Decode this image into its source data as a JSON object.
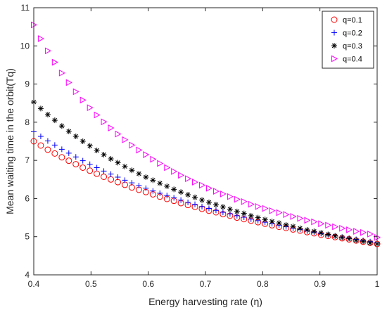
{
  "chart_data": {
    "type": "scatter",
    "title": "",
    "xlabel": "Energy harvesting rate (η)",
    "ylabel": "Mean waiting time in the orbit(Tq)",
    "xlim": [
      0.4,
      1
    ],
    "ylim": [
      4,
      11
    ],
    "xticks": [
      "0.4",
      "0.5",
      "0.6",
      "0.7",
      "0.8",
      "0.9",
      "1"
    ],
    "yticks": [
      "4",
      "5",
      "6",
      "7",
      "8",
      "9",
      "10",
      "11"
    ],
    "grid": false,
    "legend_position": "top-right",
    "x": [
      0.4,
      0.4122,
      0.4245,
      0.4367,
      0.449,
      0.4612,
      0.4735,
      0.4857,
      0.498,
      0.5102,
      0.5224,
      0.5347,
      0.5469,
      0.5592,
      0.5714,
      0.5837,
      0.5959,
      0.6082,
      0.6204,
      0.6327,
      0.6449,
      0.6571,
      0.6694,
      0.6816,
      0.6939,
      0.7061,
      0.7184,
      0.7306,
      0.7429,
      0.7551,
      0.7673,
      0.7796,
      0.7918,
      0.8041,
      0.8163,
      0.8286,
      0.8408,
      0.8531,
      0.8653,
      0.8776,
      0.8898,
      0.902,
      0.9143,
      0.9265,
      0.9388,
      0.951,
      0.9633,
      0.9755,
      0.9878,
      1.0
    ],
    "series": [
      {
        "name": "q=0.1",
        "marker": "circle",
        "color": "#ff0000",
        "values": [
          7.5,
          7.39,
          7.28,
          7.18,
          7.08,
          6.99,
          6.9,
          6.81,
          6.73,
          6.65,
          6.57,
          6.5,
          6.43,
          6.36,
          6.29,
          6.23,
          6.17,
          6.11,
          6.05,
          5.99,
          5.94,
          5.88,
          5.83,
          5.78,
          5.73,
          5.68,
          5.64,
          5.59,
          5.55,
          5.5,
          5.46,
          5.42,
          5.38,
          5.34,
          5.3,
          5.26,
          5.23,
          5.19,
          5.16,
          5.12,
          5.09,
          5.05,
          5.02,
          4.99,
          4.96,
          4.93,
          4.9,
          4.87,
          4.84,
          4.81
        ]
      },
      {
        "name": "q=0.2",
        "marker": "plus",
        "color": "#0000ff",
        "values": [
          7.75,
          7.63,
          7.51,
          7.4,
          7.29,
          7.19,
          7.09,
          6.99,
          6.9,
          6.81,
          6.72,
          6.64,
          6.56,
          6.48,
          6.41,
          6.34,
          6.27,
          6.2,
          6.14,
          6.08,
          6.02,
          5.96,
          5.9,
          5.85,
          5.79,
          5.74,
          5.69,
          5.64,
          5.6,
          5.55,
          5.51,
          5.46,
          5.42,
          5.38,
          5.34,
          5.3,
          5.26,
          5.22,
          5.19,
          5.15,
          5.12,
          5.08,
          5.05,
          5.02,
          4.99,
          4.96,
          4.93,
          4.9,
          4.87,
          4.84
        ]
      },
      {
        "name": "q=0.3",
        "marker": "asterisk",
        "color": "#000000",
        "values": [
          8.53,
          8.36,
          8.2,
          8.05,
          7.9,
          7.76,
          7.63,
          7.5,
          7.38,
          7.26,
          7.15,
          7.04,
          6.94,
          6.84,
          6.74,
          6.65,
          6.56,
          6.48,
          6.4,
          6.32,
          6.24,
          6.17,
          6.1,
          6.03,
          5.96,
          5.9,
          5.84,
          5.78,
          5.72,
          5.66,
          5.61,
          5.55,
          5.5,
          5.45,
          5.4,
          5.36,
          5.31,
          5.27,
          5.22,
          5.18,
          5.14,
          5.1,
          5.06,
          5.02,
          4.98,
          4.95,
          4.91,
          4.88,
          4.84,
          4.81
        ]
      },
      {
        "name": "q=0.4",
        "marker": "triangle-right",
        "color": "#ff00ff",
        "values": [
          10.55,
          10.19,
          9.87,
          9.57,
          9.29,
          9.04,
          8.8,
          8.58,
          8.38,
          8.19,
          8.01,
          7.85,
          7.69,
          7.54,
          7.4,
          7.27,
          7.15,
          7.03,
          6.92,
          6.81,
          6.71,
          6.61,
          6.52,
          6.43,
          6.35,
          6.27,
          6.19,
          6.12,
          6.05,
          5.98,
          5.92,
          5.85,
          5.79,
          5.74,
          5.68,
          5.63,
          5.58,
          5.53,
          5.48,
          5.43,
          5.39,
          5.34,
          5.3,
          5.26,
          5.22,
          5.18,
          5.14,
          5.11,
          5.07,
          4.98
        ]
      }
    ]
  }
}
